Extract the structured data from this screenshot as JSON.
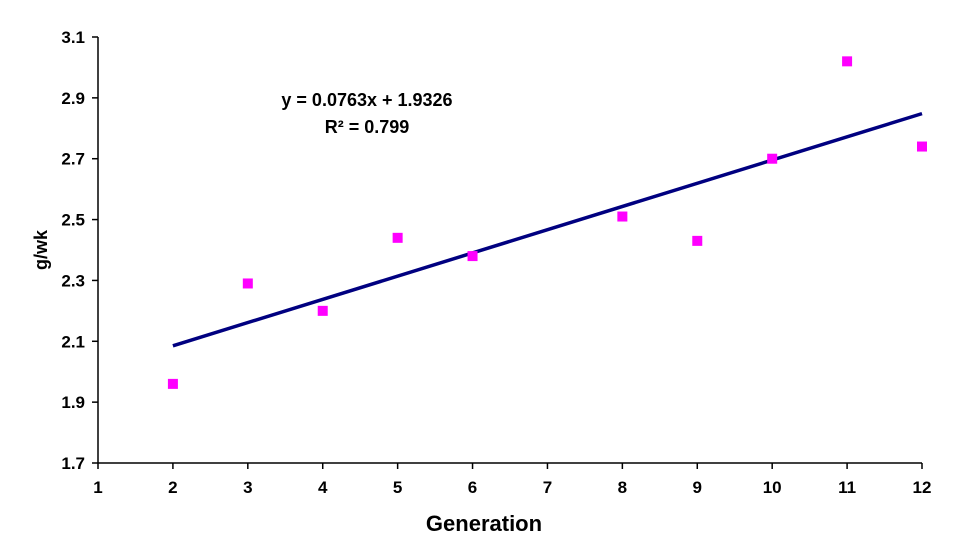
{
  "chart_data": {
    "type": "scatter",
    "title": "",
    "xlabel": "Generation",
    "ylabel": "g/wk",
    "xlim": [
      1,
      12
    ],
    "ylim": [
      1.7,
      3.1
    ],
    "xticks": [
      "1",
      "2",
      "3",
      "4",
      "5",
      "6",
      "7",
      "8",
      "9",
      "10",
      "11",
      "12"
    ],
    "yticks": [
      "1.7",
      "1.9",
      "2.1",
      "2.3",
      "2.5",
      "2.7",
      "2.9",
      "3.1"
    ],
    "grid": false,
    "series": [
      {
        "name": "g/wk",
        "marker": "square",
        "color": "#ff00ff",
        "x": [
          2,
          3,
          4,
          5,
          6,
          8,
          9,
          10,
          11,
          12
        ],
        "y": [
          1.96,
          2.29,
          2.2,
          2.44,
          2.38,
          2.51,
          2.43,
          2.7,
          3.02,
          2.74
        ]
      }
    ],
    "trendline": {
      "type": "linear",
      "slope": 0.0763,
      "intercept": 1.9326,
      "x_range": [
        2,
        12
      ],
      "color": "#000080",
      "equation": "y = 0.0763x + 1.9326",
      "r_squared": "R² = 0.799"
    }
  }
}
